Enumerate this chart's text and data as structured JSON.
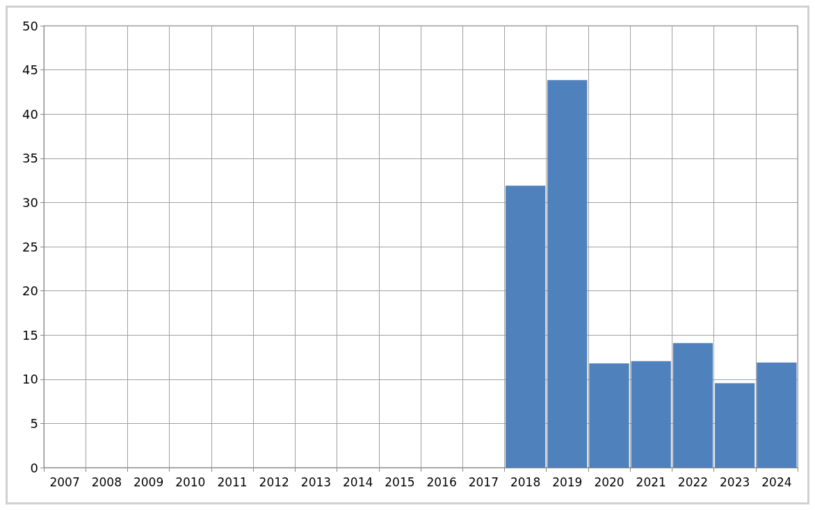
{
  "chart_data": {
    "type": "bar",
    "categories": [
      "2007",
      "2008",
      "2009",
      "2010",
      "2011",
      "2012",
      "2013",
      "2014",
      "2015",
      "2016",
      "2017",
      "2018",
      "2019",
      "2020",
      "2021",
      "2022",
      "2023",
      "2024"
    ],
    "values": [
      null,
      null,
      null,
      null,
      null,
      null,
      null,
      null,
      null,
      null,
      null,
      31.9,
      43.85,
      11.8,
      12.05,
      14.1,
      9.55,
      11.9
    ],
    "color": "#4f81bd",
    "ylim": [
      0,
      50
    ],
    "yticks": [
      0,
      5,
      10,
      15,
      20,
      25,
      30,
      35,
      40,
      45,
      50
    ],
    "grid": true
  }
}
